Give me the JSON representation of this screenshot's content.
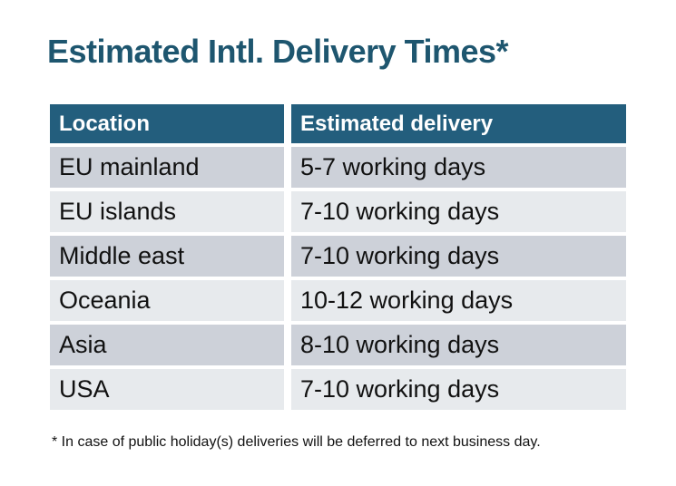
{
  "title": "Estimated Intl. Delivery Times*",
  "colors": {
    "title_text": "#1e566f",
    "header_background": "#235e7d",
    "header_text": "#ffffff",
    "row_shade_dark": "#cdd1d9",
    "row_shade_light": "#e7eaed",
    "body_text": "#111111",
    "page_background": "#ffffff"
  },
  "table": {
    "headers": {
      "location": "Location",
      "delivery": "Estimated delivery"
    },
    "rows": [
      {
        "location": "EU mainland",
        "delivery": "5-7 working days"
      },
      {
        "location": "EU islands",
        "delivery": "7-10 working days"
      },
      {
        "location": "Middle east",
        "delivery": "7-10 working days"
      },
      {
        "location": "Oceania",
        "delivery": "10-12 working days"
      },
      {
        "location": "Asia",
        "delivery": "8-10 working days"
      },
      {
        "location": "USA",
        "delivery": "7-10 working days"
      }
    ]
  },
  "footnote": "* In case of public holiday(s) deliveries will be deferred to next business day."
}
